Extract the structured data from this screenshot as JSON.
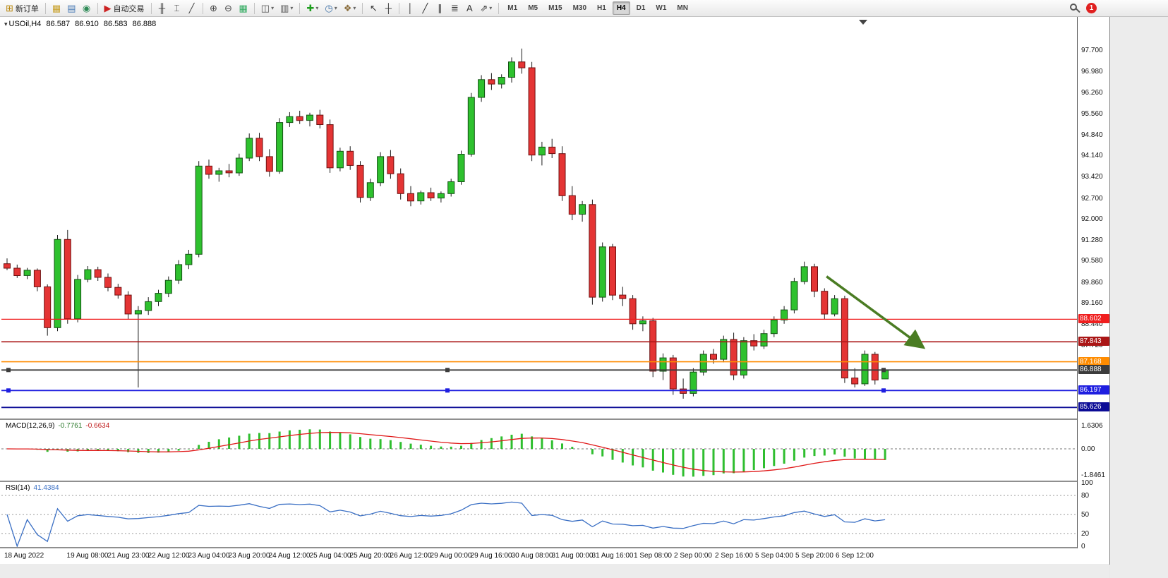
{
  "toolbar": {
    "groups": [
      {
        "items": [
          {
            "type": "labeled",
            "name": "new-order-button",
            "icon": "new-order-icon",
            "glyph": "⊞",
            "color": "#b8860b",
            "label": "新订单"
          }
        ]
      },
      {
        "items": [
          {
            "type": "icon",
            "name": "market-watch-button",
            "icon": "market-watch-icon",
            "glyph": "▦",
            "color": "#c8a028"
          },
          {
            "type": "icon",
            "name": "data-window-button",
            "icon": "data-window-icon",
            "glyph": "▤",
            "color": "#4678b4"
          },
          {
            "type": "icon",
            "name": "navigator-button",
            "icon": "navigator-icon",
            "glyph": "◉",
            "color": "#2e8b57"
          }
        ]
      },
      {
        "items": [
          {
            "type": "labeled",
            "name": "auto-trading-button",
            "icon": "auto-trading-icon",
            "glyph": "▶",
            "color": "#cc2222",
            "label": "自动交易"
          }
        ]
      },
      {
        "items": [
          {
            "type": "icon",
            "name": "bar-chart-button",
            "icon": "bar-chart-icon",
            "glyph": "╫",
            "color": "#444444"
          },
          {
            "type": "icon",
            "name": "candlestick-chart-button",
            "icon": "candlestick-chart-icon",
            "glyph": "⌶",
            "color": "#444444"
          },
          {
            "type": "icon",
            "name": "line-chart-button",
            "icon": "line-chart-icon",
            "glyph": "╱",
            "color": "#444444"
          }
        ]
      },
      {
        "items": [
          {
            "type": "icon",
            "name": "zoom-in-button",
            "icon": "zoom-in-icon",
            "glyph": "⊕",
            "color": "#444444"
          },
          {
            "type": "icon",
            "name": "zoom-out-button",
            "icon": "zoom-out-icon",
            "glyph": "⊖",
            "color": "#444444"
          },
          {
            "type": "icon",
            "name": "grid-button",
            "icon": "grid-icon",
            "glyph": "▦",
            "color": "#2eaa5e"
          }
        ]
      },
      {
        "items": [
          {
            "type": "dropdown",
            "name": "new-chart-button",
            "icon": "new-chart-icon",
            "glyph": "◫",
            "color": "#555555"
          },
          {
            "type": "dropdown",
            "name": "profiles-button",
            "icon": "profiles-icon",
            "glyph": "▥",
            "color": "#555555"
          }
        ]
      },
      {
        "items": [
          {
            "type": "dropdown",
            "name": "indicators-button",
            "icon": "indicators-icon",
            "glyph": "✚",
            "color": "#1e9e1e"
          },
          {
            "type": "dropdown",
            "name": "periods-button",
            "icon": "periods-icon",
            "glyph": "◷",
            "color": "#3a6ea5"
          },
          {
            "type": "dropdown",
            "name": "templates-button",
            "icon": "templates-icon",
            "glyph": "❖",
            "color": "#8a6d3b"
          }
        ]
      },
      {
        "items": [
          {
            "type": "icon",
            "name": "cursor-button",
            "icon": "cursor-icon",
            "glyph": "↖",
            "color": "#333333"
          },
          {
            "type": "icon",
            "name": "crosshair-button",
            "icon": "crosshair-icon",
            "glyph": "┼",
            "color": "#333333"
          }
        ]
      },
      {
        "items": [
          {
            "type": "icon",
            "name": "vertical-line-button",
            "icon": "vertical-line-icon",
            "glyph": "│",
            "color": "#333333"
          },
          {
            "type": "icon",
            "name": "trendline-button",
            "icon": "trendline-icon",
            "glyph": "╱",
            "color": "#333333"
          },
          {
            "type": "icon",
            "name": "channel-button",
            "icon": "channel-icon",
            "glyph": "∥",
            "color": "#333333"
          },
          {
            "type": "icon",
            "name": "fibonacci-button",
            "icon": "fibonacci-icon",
            "glyph": "≣",
            "color": "#333333"
          },
          {
            "type": "icon",
            "name": "text-button",
            "icon": "text-icon",
            "glyph": "A",
            "color": "#333333"
          },
          {
            "type": "dropdown",
            "name": "arrows-button",
            "icon": "arrows-icon",
            "glyph": "⇗",
            "color": "#333333"
          }
        ]
      }
    ],
    "timeframes": [
      "M1",
      "M5",
      "M15",
      "M30",
      "H1",
      "H4",
      "D1",
      "W1",
      "MN"
    ],
    "active_timeframe": "H4",
    "notification_count": "1"
  },
  "chart": {
    "symbol_title": "USOil,H4",
    "ohlc": {
      "open": "86.587",
      "high": "86.910",
      "low": "86.583",
      "close": "86.888"
    }
  },
  "macd_panel": {
    "title": "MACD(12,26,9)",
    "main_value": "-0.7761",
    "signal_value": "-0.6634"
  },
  "rsi_panel": {
    "title": "RSI(14)",
    "value": "41.4384"
  },
  "chart_data": {
    "type": "candlestick",
    "symbol": "USOil",
    "timeframe": "H4",
    "ohlc_display": {
      "open": 86.587,
      "high": 86.91,
      "low": 86.583,
      "close": 86.888
    },
    "colors": {
      "bull": "#2ec12e",
      "bear": "#e43434",
      "macd_histogram": "#2fbe2f",
      "macd_signal": "#e01818",
      "rsi_line": "#3a6fc4"
    },
    "price_axis_ticks": [
      "97.700",
      "96.980",
      "96.260",
      "95.560",
      "94.840",
      "94.140",
      "93.420",
      "92.700",
      "92.000",
      "91.280",
      "90.580",
      "89.860",
      "89.160",
      "88.440",
      "87.720"
    ],
    "horizontal_lines": [
      {
        "price": 88.602,
        "label": "88.602",
        "color": "#f01e1e",
        "width": 1.2,
        "handles": false
      },
      {
        "price": 87.843,
        "label": "87.843",
        "color": "#aa1616",
        "width": 1.6,
        "handles": false
      },
      {
        "price": 87.168,
        "label": "87.168",
        "color": "#ff8c00",
        "width": 1.6,
        "handles": false
      },
      {
        "price": 86.888,
        "label": "86.888",
        "color": "#3c3c3c",
        "width": 1.8,
        "handles": true
      },
      {
        "price": 86.197,
        "label": "86.197",
        "color": "#1e1ee0",
        "width": 1.8,
        "handles": true
      },
      {
        "price": 85.626,
        "label": "85.626",
        "color": "#0c0c96",
        "width": 1.8,
        "handles": false
      }
    ],
    "candles": [
      [
        90.48,
        90.66,
        90.26,
        90.33
      ],
      [
        90.33,
        90.45,
        90.0,
        90.08
      ],
      [
        90.08,
        90.34,
        89.96,
        90.26
      ],
      [
        90.26,
        90.32,
        89.55,
        89.7
      ],
      [
        89.7,
        89.78,
        88.05,
        88.32
      ],
      [
        88.32,
        91.45,
        88.2,
        91.3
      ],
      [
        91.3,
        91.62,
        88.45,
        88.62
      ],
      [
        88.62,
        90.1,
        88.5,
        89.95
      ],
      [
        89.95,
        90.4,
        89.85,
        90.28
      ],
      [
        90.28,
        90.38,
        89.9,
        90.02
      ],
      [
        90.02,
        90.15,
        89.55,
        89.68
      ],
      [
        89.68,
        89.8,
        89.3,
        89.42
      ],
      [
        89.42,
        89.55,
        88.6,
        88.78
      ],
      [
        88.78,
        89.05,
        86.3,
        88.9
      ],
      [
        88.9,
        89.35,
        88.75,
        89.2
      ],
      [
        89.2,
        89.6,
        89.05,
        89.48
      ],
      [
        89.48,
        90.05,
        89.35,
        89.92
      ],
      [
        89.92,
        90.6,
        89.8,
        90.45
      ],
      [
        90.45,
        90.95,
        90.3,
        90.8
      ],
      [
        90.8,
        93.95,
        90.7,
        93.78
      ],
      [
        93.78,
        94.0,
        93.35,
        93.5
      ],
      [
        93.5,
        93.72,
        93.25,
        93.62
      ],
      [
        93.62,
        93.85,
        93.4,
        93.55
      ],
      [
        93.55,
        94.2,
        93.45,
        94.05
      ],
      [
        94.05,
        94.88,
        93.95,
        94.72
      ],
      [
        94.72,
        94.9,
        93.95,
        94.1
      ],
      [
        94.1,
        94.35,
        93.42,
        93.6
      ],
      [
        93.6,
        95.4,
        93.52,
        95.25
      ],
      [
        95.25,
        95.6,
        95.1,
        95.45
      ],
      [
        95.45,
        95.65,
        95.2,
        95.32
      ],
      [
        95.32,
        95.58,
        95.12,
        95.5
      ],
      [
        95.5,
        95.68,
        95.05,
        95.18
      ],
      [
        95.18,
        95.35,
        93.55,
        93.72
      ],
      [
        93.72,
        94.4,
        93.6,
        94.28
      ],
      [
        94.28,
        94.45,
        93.65,
        93.8
      ],
      [
        93.8,
        93.95,
        92.55,
        92.72
      ],
      [
        92.72,
        93.35,
        92.6,
        93.22
      ],
      [
        93.22,
        94.25,
        93.1,
        94.1
      ],
      [
        94.1,
        94.32,
        93.35,
        93.52
      ],
      [
        93.52,
        93.7,
        92.65,
        92.85
      ],
      [
        92.85,
        93.1,
        92.42,
        92.6
      ],
      [
        92.6,
        92.95,
        92.48,
        92.88
      ],
      [
        92.88,
        93.05,
        92.6,
        92.7
      ],
      [
        92.7,
        92.92,
        92.55,
        92.85
      ],
      [
        92.85,
        93.35,
        92.75,
        93.25
      ],
      [
        93.25,
        94.3,
        93.15,
        94.18
      ],
      [
        94.18,
        96.25,
        94.1,
        96.1
      ],
      [
        96.1,
        96.85,
        95.95,
        96.7
      ],
      [
        96.7,
        96.92,
        96.35,
        96.55
      ],
      [
        96.55,
        96.88,
        96.4,
        96.78
      ],
      [
        96.78,
        97.45,
        96.6,
        97.3
      ],
      [
        97.3,
        97.75,
        96.9,
        97.1
      ],
      [
        97.1,
        97.3,
        93.95,
        94.15
      ],
      [
        94.15,
        94.6,
        93.8,
        94.42
      ],
      [
        94.42,
        94.7,
        94.05,
        94.2
      ],
      [
        94.2,
        94.45,
        92.6,
        92.78
      ],
      [
        92.78,
        93.1,
        91.95,
        92.15
      ],
      [
        92.15,
        92.6,
        91.9,
        92.48
      ],
      [
        92.48,
        92.65,
        89.1,
        89.35
      ],
      [
        89.35,
        91.2,
        89.2,
        91.05
      ],
      [
        91.05,
        91.15,
        89.25,
        89.42
      ],
      [
        89.42,
        89.7,
        89.05,
        89.3
      ],
      [
        89.3,
        89.42,
        88.25,
        88.45
      ],
      [
        88.45,
        88.7,
        88.2,
        88.55
      ],
      [
        88.55,
        88.65,
        86.65,
        86.85
      ],
      [
        86.85,
        87.45,
        86.55,
        87.3
      ],
      [
        87.3,
        87.4,
        86.05,
        86.25
      ],
      [
        86.25,
        86.6,
        85.92,
        86.1
      ],
      [
        86.1,
        86.95,
        86.0,
        86.82
      ],
      [
        86.82,
        87.55,
        86.7,
        87.42
      ],
      [
        87.42,
        87.6,
        87.1,
        87.25
      ],
      [
        87.25,
        88.05,
        87.15,
        87.92
      ],
      [
        87.92,
        88.15,
        86.55,
        86.72
      ],
      [
        86.72,
        88.0,
        86.6,
        87.88
      ],
      [
        87.88,
        88.1,
        87.55,
        87.7
      ],
      [
        87.7,
        88.25,
        87.6,
        88.12
      ],
      [
        88.12,
        88.7,
        88.0,
        88.58
      ],
      [
        88.58,
        89.05,
        88.45,
        88.92
      ],
      [
        88.92,
        90.0,
        88.8,
        89.88
      ],
      [
        89.88,
        90.55,
        89.78,
        90.38
      ],
      [
        90.38,
        90.48,
        89.35,
        89.55
      ],
      [
        89.55,
        89.65,
        88.6,
        88.78
      ],
      [
        88.78,
        89.42,
        88.7,
        89.3
      ],
      [
        89.3,
        89.4,
        86.45,
        86.62
      ],
      [
        86.62,
        86.95,
        86.3,
        86.42
      ],
      [
        86.42,
        87.55,
        86.35,
        87.42
      ],
      [
        87.42,
        87.5,
        86.4,
        86.55
      ],
      [
        86.587,
        86.91,
        86.583,
        86.888
      ]
    ],
    "time_labels": [
      [
        0,
        "18 Aug 2022"
      ],
      [
        8,
        "19 Aug 08:00"
      ],
      [
        12,
        "21 Aug 23:00"
      ],
      [
        16,
        "22 Aug 12:00"
      ],
      [
        20,
        "23 Aug 04:00"
      ],
      [
        24,
        "23 Aug 20:00"
      ],
      [
        28,
        "24 Aug 12:00"
      ],
      [
        32,
        "25 Aug 04:00"
      ],
      [
        36,
        "25 Aug 20:00"
      ],
      [
        40,
        "26 Aug 12:00"
      ],
      [
        44,
        "29 Aug 00:00"
      ],
      [
        48,
        "29 Aug 16:00"
      ],
      [
        52,
        "30 Aug 08:00"
      ],
      [
        56,
        "31 Aug 00:00"
      ],
      [
        60,
        "31 Aug 16:00"
      ],
      [
        64,
        "1 Sep 08:00"
      ],
      [
        68,
        "2 Sep 00:00"
      ],
      [
        72,
        "2 Sep 16:00"
      ],
      [
        76,
        "5 Sep 04:00"
      ],
      [
        80,
        "5 Sep 20:00"
      ],
      [
        84,
        "6 Sep 12:00"
      ]
    ],
    "indicators": [
      {
        "name": "MACD",
        "params": "12,26,9",
        "current_main": -0.7761,
        "current_signal": -0.6634,
        "axis": [
          {
            "v": 1.6306,
            "label": "1.6306"
          },
          {
            "v": 0,
            "label": "0.00"
          },
          {
            "v": -1.8461,
            "label": "-1.8461"
          }
        ]
      },
      {
        "name": "RSI",
        "params": "14",
        "current": 41.4384,
        "levels": [
          80,
          50,
          20
        ],
        "axis": [
          {
            "v": 100,
            "label": "100"
          },
          {
            "v": 80,
            "label": "80"
          },
          {
            "v": 50,
            "label": "50"
          },
          {
            "v": 20,
            "label": "20"
          },
          {
            "v": 0,
            "label": "0"
          }
        ]
      }
    ],
    "annotation_arrow": {
      "from_index": 81.2,
      "from_price": 90.05,
      "to_index": 90.6,
      "to_price": 87.7,
      "color": "#4a7c23"
    },
    "view": {
      "price_top": 98.77,
      "price_bottom": 85.27
    }
  }
}
